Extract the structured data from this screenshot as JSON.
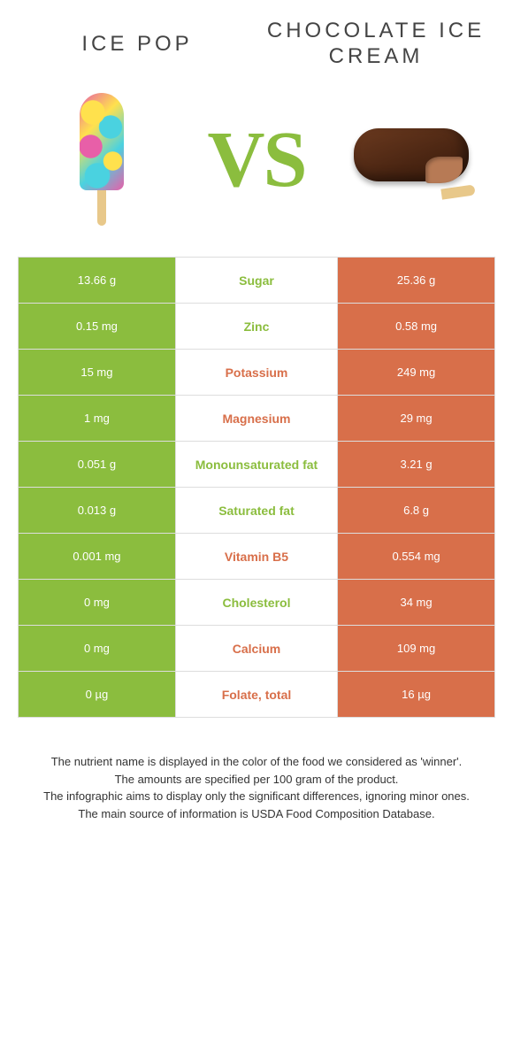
{
  "colors": {
    "left": "#8bbd3e",
    "right": "#d86f4a",
    "row_border": "#dddddd",
    "text_white": "#ffffff"
  },
  "header": {
    "left_title": "ICE POP",
    "right_title": "CHOCOLATE ICE CREAM",
    "vs": "VS"
  },
  "rows": [
    {
      "left": "13.66 g",
      "label": "Sugar",
      "right": "25.36 g",
      "winner": "left"
    },
    {
      "left": "0.15 mg",
      "label": "Zinc",
      "right": "0.58 mg",
      "winner": "left"
    },
    {
      "left": "15 mg",
      "label": "Potassium",
      "right": "249 mg",
      "winner": "right"
    },
    {
      "left": "1 mg",
      "label": "Magnesium",
      "right": "29 mg",
      "winner": "right"
    },
    {
      "left": "0.051 g",
      "label": "Monounsaturated fat",
      "right": "3.21 g",
      "winner": "left"
    },
    {
      "left": "0.013 g",
      "label": "Saturated fat",
      "right": "6.8 g",
      "winner": "left"
    },
    {
      "left": "0.001 mg",
      "label": "Vitamin B5",
      "right": "0.554 mg",
      "winner": "right"
    },
    {
      "left": "0 mg",
      "label": "Cholesterol",
      "right": "34 mg",
      "winner": "left"
    },
    {
      "left": "0 mg",
      "label": "Calcium",
      "right": "109 mg",
      "winner": "right"
    },
    {
      "left": "0 µg",
      "label": "Folate, total",
      "right": "16 µg",
      "winner": "right"
    }
  ],
  "footer": {
    "l1": "The nutrient name is displayed in the color of the food we considered as 'winner'.",
    "l2": "The amounts are specified per 100 gram of the product.",
    "l3": "The infographic aims to display only the significant differences, ignoring minor ones.",
    "l4": "The main source of information is USDA Food Composition Database."
  }
}
